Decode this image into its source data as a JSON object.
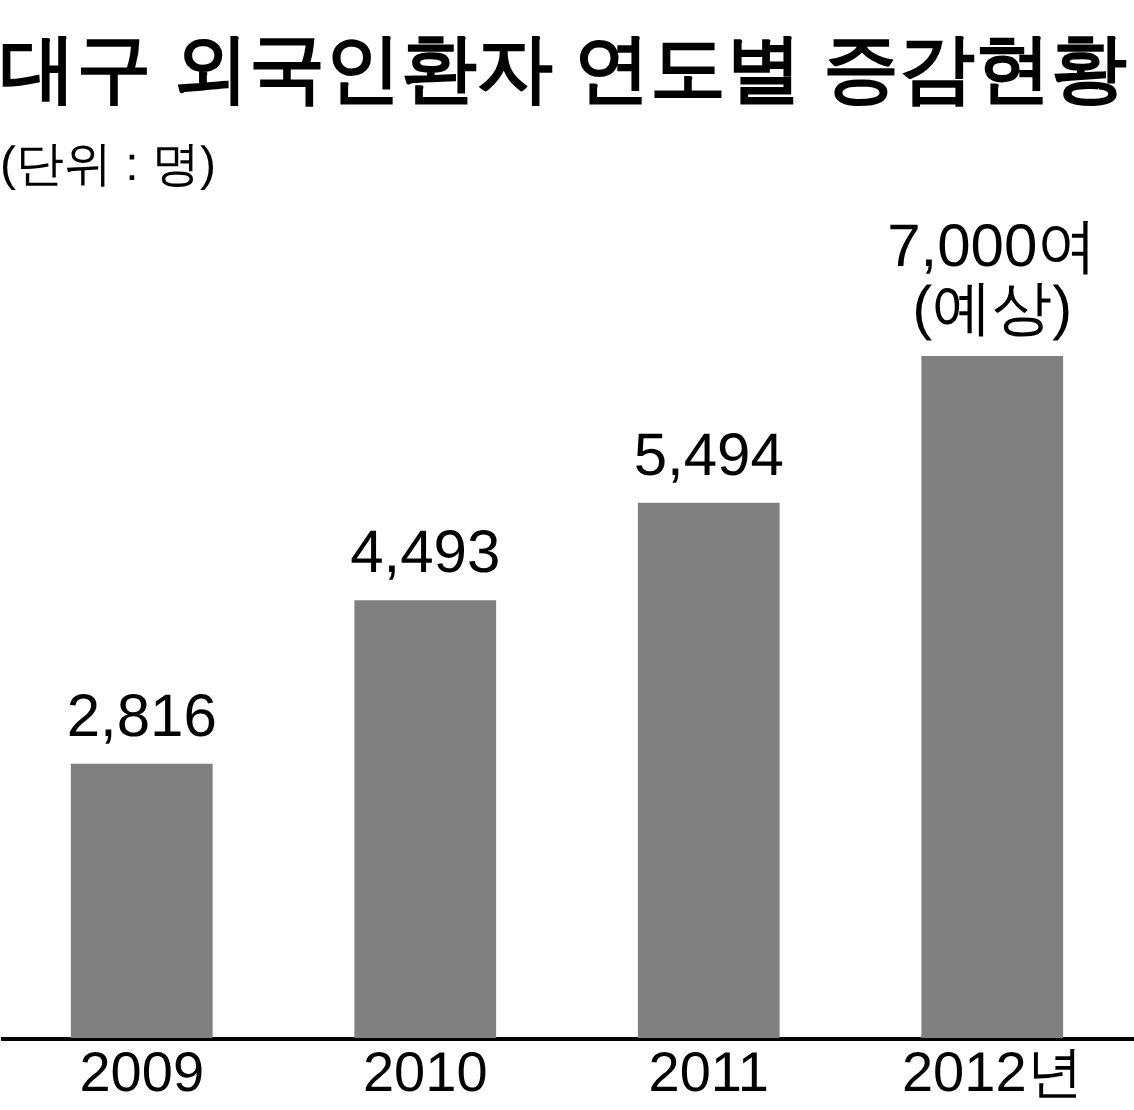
{
  "chart_data": {
    "type": "bar",
    "title": "대구 외국인환자 연도별 증감현황",
    "subtitle": "(단위 : 명)",
    "categories": [
      "2009",
      "2010",
      "2011",
      "2012년"
    ],
    "values": [
      2816,
      4493,
      5494,
      7000
    ],
    "value_labels": [
      "2,816",
      "4,493",
      "5,494",
      "7,000여\n(예상)"
    ],
    "color": "#808080"
  }
}
